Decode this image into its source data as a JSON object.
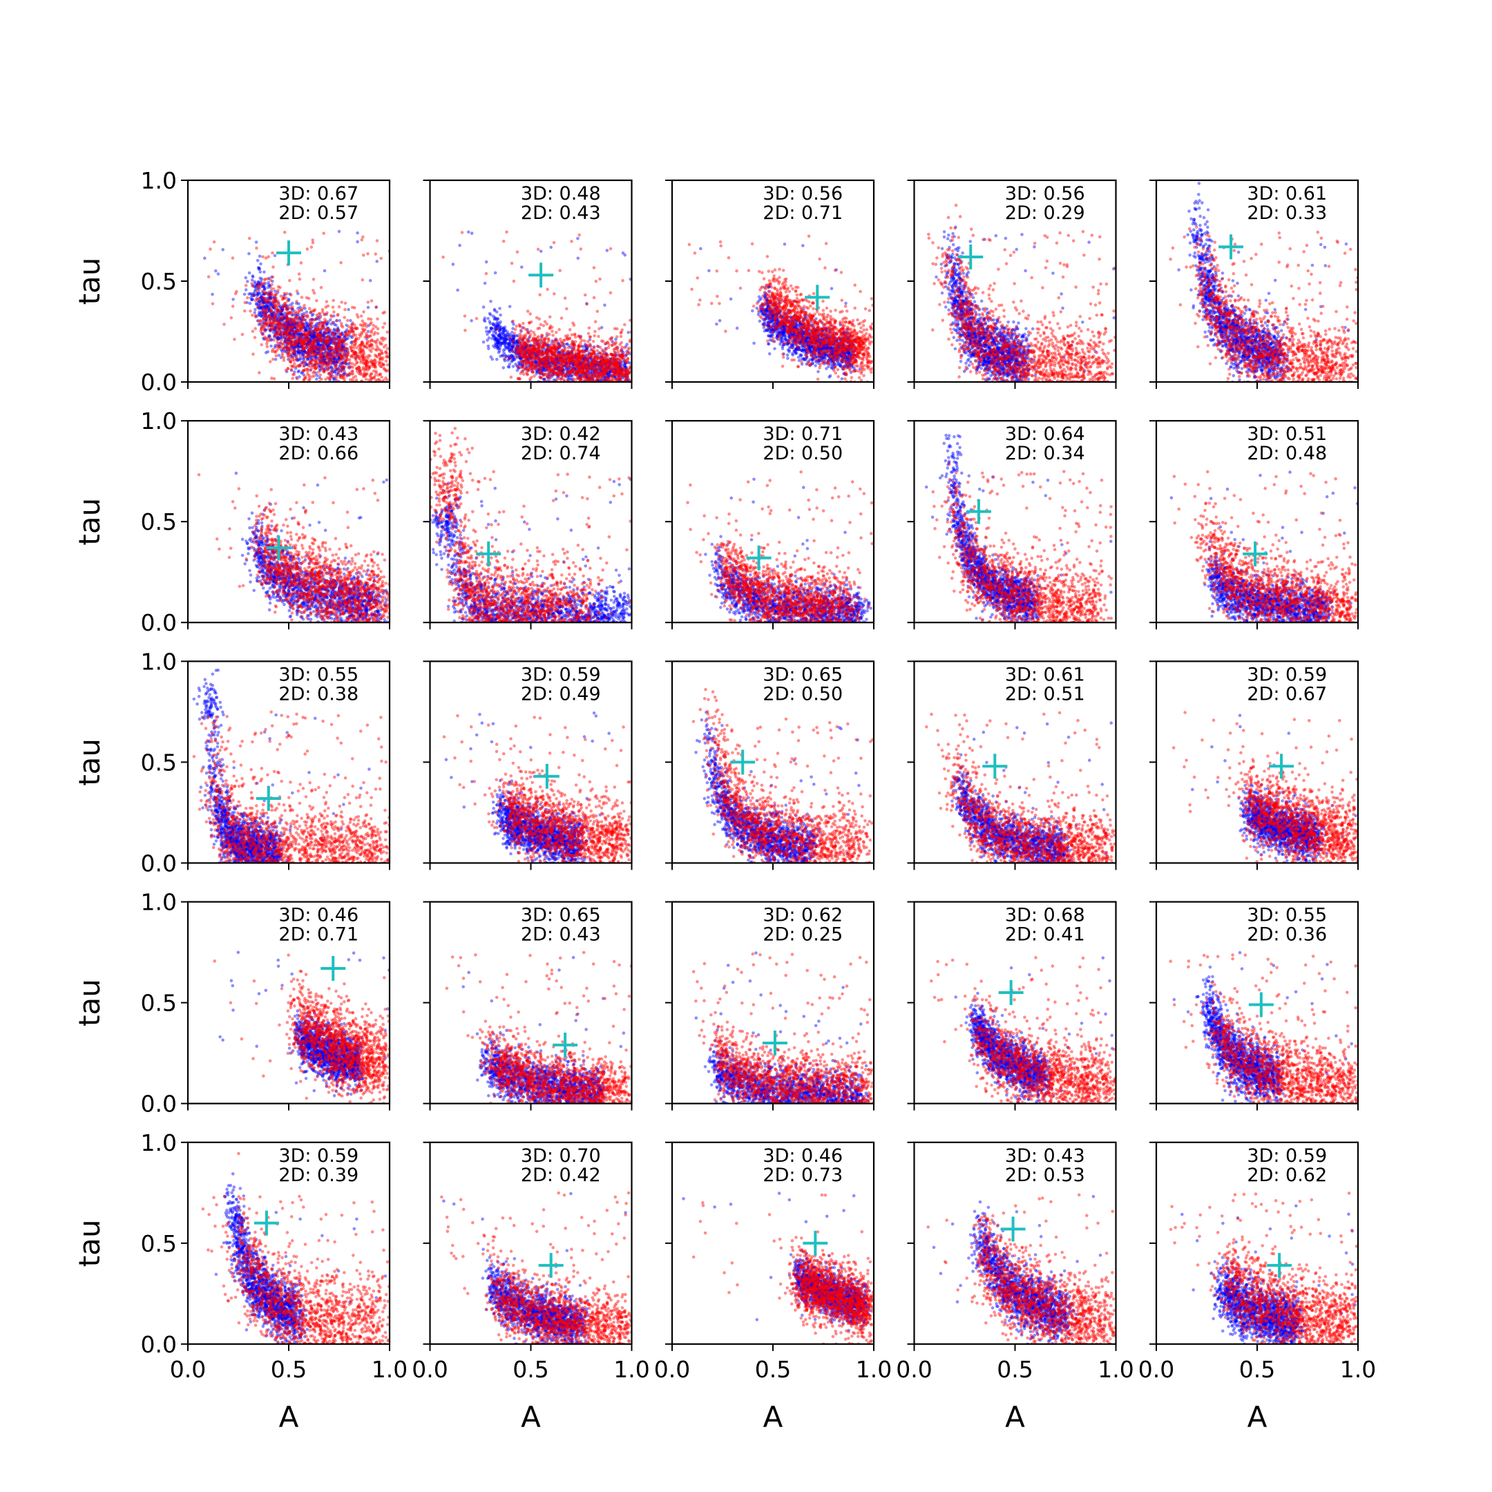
{
  "chart_data": {
    "type": "scatter",
    "layout": {
      "rows": 5,
      "cols": 5
    },
    "xlabel": "A",
    "ylabel": "tau",
    "xlim": [
      0.0,
      1.0
    ],
    "ylim": [
      0.0,
      1.0
    ],
    "xticks": [
      0.0,
      0.5,
      1.0
    ],
    "yticks": [
      0.0,
      0.5,
      1.0
    ],
    "xtick_labels": [
      "0.0",
      "0.5",
      "1.0"
    ],
    "ytick_labels": [
      "0.0",
      "0.5",
      "1.0"
    ],
    "colors": {
      "series_3d": "#0000ff",
      "series_2d": "#ff0000",
      "marker": "#1fbfbf"
    },
    "panels": [
      {
        "label3d": "3D: 0.67",
        "label2d": "2D: 0.57",
        "marker": [
          0.5,
          0.64
        ],
        "curve3d": {
          "a": 0.38,
          "b": 0.42,
          "xmin": 0.33,
          "xmax": 0.78,
          "w": 0.07
        },
        "curve2d": {
          "a": 0.34,
          "b": 0.48,
          "xmin": 0.36,
          "xmax": 0.98,
          "w": 0.1
        },
        "s3d": 0.02,
        "s2d": 0.05
      },
      {
        "label3d": "3D: 0.48",
        "label2d": "2D: 0.43",
        "marker": [
          0.55,
          0.53
        ],
        "curve3d": {
          "a": 0.28,
          "b": 0.32,
          "xmin": 0.3,
          "xmax": 0.98,
          "w": 0.05
        },
        "curve2d": {
          "a": 0.28,
          "b": 0.35,
          "xmin": 0.44,
          "xmax": 0.98,
          "w": 0.07
        },
        "s3d": 0.03,
        "s2d": 0.05
      },
      {
        "label3d": "3D: 0.56",
        "label2d": "2D: 0.71",
        "marker": [
          0.72,
          0.42
        ],
        "curve3d": {
          "a": 0.4,
          "b": 0.48,
          "xmin": 0.45,
          "xmax": 0.9,
          "w": 0.05
        },
        "curve2d": {
          "a": 0.45,
          "b": 0.52,
          "xmin": 0.47,
          "xmax": 0.98,
          "w": 0.07
        },
        "s3d": 0.02,
        "s2d": 0.04
      },
      {
        "label3d": "3D: 0.56",
        "label2d": "2D: 0.29",
        "marker": [
          0.28,
          0.62
        ],
        "curve3d": {
          "a": 0.3,
          "b": 0.25,
          "xmin": 0.18,
          "xmax": 0.55,
          "w": 0.07
        },
        "curve2d": {
          "a": 0.3,
          "b": 0.25,
          "xmin": 0.18,
          "xmax": 0.95,
          "w": 0.1
        },
        "s3d": 0.02,
        "s2d": 0.1
      },
      {
        "label3d": "3D: 0.61",
        "label2d": "2D: 0.33",
        "marker": [
          0.37,
          0.67
        ],
        "curve3d": {
          "a": 0.33,
          "b": 0.32,
          "xmin": 0.2,
          "xmax": 0.62,
          "w": 0.07
        },
        "curve2d": {
          "a": 0.32,
          "b": 0.33,
          "xmin": 0.22,
          "xmax": 0.97,
          "w": 0.1
        },
        "s3d": 0.02,
        "s2d": 0.08
      },
      {
        "label3d": "3D: 0.43",
        "label2d": "2D: 0.66",
        "marker": [
          0.45,
          0.37
        ],
        "curve3d": {
          "a": 0.38,
          "b": 0.33,
          "xmin": 0.32,
          "xmax": 0.95,
          "w": 0.07
        },
        "curve2d": {
          "a": 0.4,
          "b": 0.4,
          "xmin": 0.36,
          "xmax": 0.98,
          "w": 0.1
        },
        "s3d": 0.02,
        "s2d": 0.04
      },
      {
        "label3d": "3D: 0.42",
        "label2d": "2D: 0.74",
        "marker": [
          0.29,
          0.34
        ],
        "curve3d": {
          "a": 0.25,
          "b": 0.07,
          "xmin": 0.05,
          "xmax": 0.98,
          "w": 0.08
        },
        "curve2d": {
          "a": 0.25,
          "b": 0.1,
          "xmin": 0.05,
          "xmax": 0.8,
          "w": 0.12
        },
        "s3d": 0.02,
        "s2d": 0.06
      },
      {
        "label3d": "3D: 0.71",
        "label2d": "2D: 0.50",
        "marker": [
          0.43,
          0.32
        ],
        "curve3d": {
          "a": 0.25,
          "b": 0.25,
          "xmin": 0.22,
          "xmax": 0.95,
          "w": 0.06
        },
        "curve2d": {
          "a": 0.28,
          "b": 0.3,
          "xmin": 0.25,
          "xmax": 0.9,
          "w": 0.09
        },
        "s3d": 0.02,
        "s2d": 0.07
      },
      {
        "label3d": "3D: 0.64",
        "label2d": "2D: 0.34",
        "marker": [
          0.32,
          0.55
        ],
        "curve3d": {
          "a": 0.32,
          "b": 0.27,
          "xmin": 0.18,
          "xmax": 0.6,
          "w": 0.06
        },
        "curve2d": {
          "a": 0.32,
          "b": 0.27,
          "xmin": 0.2,
          "xmax": 0.92,
          "w": 0.1
        },
        "s3d": 0.02,
        "s2d": 0.08
      },
      {
        "label3d": "3D: 0.51",
        "label2d": "2D: 0.48",
        "marker": [
          0.49,
          0.34
        ],
        "curve3d": {
          "a": 0.25,
          "b": 0.3,
          "xmin": 0.27,
          "xmax": 0.85,
          "w": 0.06
        },
        "curve2d": {
          "a": 0.3,
          "b": 0.35,
          "xmin": 0.25,
          "xmax": 0.98,
          "w": 0.1
        },
        "s3d": 0.02,
        "s2d": 0.06
      },
      {
        "label3d": "3D: 0.55",
        "label2d": "2D: 0.38",
        "marker": [
          0.4,
          0.32
        ],
        "curve3d": {
          "a": 0.24,
          "b": 0.12,
          "xmin": 0.1,
          "xmax": 0.45,
          "w": 0.07
        },
        "curve2d": {
          "a": 0.24,
          "b": 0.12,
          "xmin": 0.12,
          "xmax": 0.98,
          "w": 0.12
        },
        "s3d": 0.02,
        "s2d": 0.1
      },
      {
        "label3d": "3D: 0.59",
        "label2d": "2D: 0.49",
        "marker": [
          0.58,
          0.43
        ],
        "curve3d": {
          "a": 0.3,
          "b": 0.35,
          "xmin": 0.35,
          "xmax": 0.75,
          "w": 0.06
        },
        "curve2d": {
          "a": 0.35,
          "b": 0.4,
          "xmin": 0.38,
          "xmax": 0.98,
          "w": 0.1
        },
        "s3d": 0.02,
        "s2d": 0.07
      },
      {
        "label3d": "3D: 0.65",
        "label2d": "2D: 0.50",
        "marker": [
          0.35,
          0.5
        ],
        "curve3d": {
          "a": 0.3,
          "b": 0.25,
          "xmin": 0.18,
          "xmax": 0.7,
          "w": 0.06
        },
        "curve2d": {
          "a": 0.32,
          "b": 0.3,
          "xmin": 0.2,
          "xmax": 0.95,
          "w": 0.1
        },
        "s3d": 0.02,
        "s2d": 0.08
      },
      {
        "label3d": "3D: 0.61",
        "label2d": "2D: 0.51",
        "marker": [
          0.4,
          0.48
        ],
        "curve3d": {
          "a": 0.3,
          "b": 0.25,
          "xmin": 0.22,
          "xmax": 0.75,
          "w": 0.06
        },
        "curve2d": {
          "a": 0.3,
          "b": 0.25,
          "xmin": 0.2,
          "xmax": 0.98,
          "w": 0.1
        },
        "s3d": 0.02,
        "s2d": 0.07
      },
      {
        "label3d": "3D: 0.59",
        "label2d": "2D: 0.67",
        "marker": [
          0.62,
          0.48
        ],
        "curve3d": {
          "a": 0.35,
          "b": 0.42,
          "xmin": 0.45,
          "xmax": 0.8,
          "w": 0.06
        },
        "curve2d": {
          "a": 0.4,
          "b": 0.45,
          "xmin": 0.45,
          "xmax": 0.98,
          "w": 0.1
        },
        "s3d": 0.02,
        "s2d": 0.05
      },
      {
        "label3d": "3D: 0.46",
        "label2d": "2D: 0.71",
        "marker": [
          0.72,
          0.67
        ],
        "curve3d": {
          "a": 0.4,
          "b": 0.6,
          "xmin": 0.55,
          "xmax": 0.85,
          "w": 0.06
        },
        "curve2d": {
          "a": 0.45,
          "b": 0.62,
          "xmin": 0.55,
          "xmax": 0.98,
          "w": 0.1
        },
        "s3d": 0.02,
        "s2d": 0.02
      },
      {
        "label3d": "3D: 0.65",
        "label2d": "2D: 0.43",
        "marker": [
          0.67,
          0.29
        ],
        "curve3d": {
          "a": 0.25,
          "b": 0.28,
          "xmin": 0.28,
          "xmax": 0.85,
          "w": 0.06
        },
        "curve2d": {
          "a": 0.28,
          "b": 0.3,
          "xmin": 0.3,
          "xmax": 0.98,
          "w": 0.08
        },
        "s3d": 0.02,
        "s2d": 0.06
      },
      {
        "label3d": "3D: 0.62",
        "label2d": "2D: 0.25",
        "marker": [
          0.51,
          0.3
        ],
        "curve3d": {
          "a": 0.22,
          "b": 0.2,
          "xmin": 0.2,
          "xmax": 0.95,
          "w": 0.06
        },
        "curve2d": {
          "a": 0.25,
          "b": 0.25,
          "xmin": 0.22,
          "xmax": 0.98,
          "w": 0.09
        },
        "s3d": 0.02,
        "s2d": 0.08
      },
      {
        "label3d": "3D: 0.68",
        "label2d": "2D: 0.41",
        "marker": [
          0.48,
          0.55
        ],
        "curve3d": {
          "a": 0.35,
          "b": 0.35,
          "xmin": 0.3,
          "xmax": 0.65,
          "w": 0.06
        },
        "curve2d": {
          "a": 0.35,
          "b": 0.35,
          "xmin": 0.32,
          "xmax": 0.98,
          "w": 0.1
        },
        "s3d": 0.02,
        "s2d": 0.07
      },
      {
        "label3d": "3D: 0.55",
        "label2d": "2D: 0.36",
        "marker": [
          0.52,
          0.49
        ],
        "curve3d": {
          "a": 0.35,
          "b": 0.3,
          "xmin": 0.25,
          "xmax": 0.6,
          "w": 0.07
        },
        "curve2d": {
          "a": 0.35,
          "b": 0.33,
          "xmin": 0.3,
          "xmax": 0.98,
          "w": 0.1
        },
        "s3d": 0.02,
        "s2d": 0.07
      },
      {
        "label3d": "3D: 0.59",
        "label2d": "2D: 0.39",
        "marker": [
          0.39,
          0.6
        ],
        "curve3d": {
          "a": 0.35,
          "b": 0.3,
          "xmin": 0.22,
          "xmax": 0.55,
          "w": 0.07
        },
        "curve2d": {
          "a": 0.35,
          "b": 0.32,
          "xmin": 0.25,
          "xmax": 0.98,
          "w": 0.12
        },
        "s3d": 0.02,
        "s2d": 0.08
      },
      {
        "label3d": "3D: 0.70",
        "label2d": "2D: 0.42",
        "marker": [
          0.6,
          0.39
        ],
        "curve3d": {
          "a": 0.3,
          "b": 0.35,
          "xmin": 0.3,
          "xmax": 0.75,
          "w": 0.06
        },
        "curve2d": {
          "a": 0.3,
          "b": 0.35,
          "xmin": 0.32,
          "xmax": 0.98,
          "w": 0.09
        },
        "s3d": 0.02,
        "s2d": 0.07
      },
      {
        "label3d": "3D: 0.46",
        "label2d": "2D: 0.73",
        "marker": [
          0.71,
          0.5
        ],
        "curve3d": {
          "a": 0.45,
          "b": 0.6,
          "xmin": 0.62,
          "xmax": 0.95,
          "w": 0.05
        },
        "curve2d": {
          "a": 0.45,
          "b": 0.6,
          "xmin": 0.62,
          "xmax": 0.99,
          "w": 0.08
        },
        "s3d": 0.02,
        "s2d": 0.02
      },
      {
        "label3d": "3D: 0.43",
        "label2d": "2D: 0.53",
        "marker": [
          0.49,
          0.57
        ],
        "curve3d": {
          "a": 0.4,
          "b": 0.4,
          "xmin": 0.32,
          "xmax": 0.75,
          "w": 0.07
        },
        "curve2d": {
          "a": 0.4,
          "b": 0.4,
          "xmin": 0.33,
          "xmax": 0.98,
          "w": 0.1
        },
        "s3d": 0.02,
        "s2d": 0.06
      },
      {
        "label3d": "3D: 0.59",
        "label2d": "2D: 0.62",
        "marker": [
          0.61,
          0.39
        ],
        "curve3d": {
          "a": 0.3,
          "b": 0.35,
          "xmin": 0.32,
          "xmax": 0.7,
          "w": 0.07
        },
        "curve2d": {
          "a": 0.35,
          "b": 0.4,
          "xmin": 0.35,
          "xmax": 0.98,
          "w": 0.1
        },
        "s3d": 0.02,
        "s2d": 0.06
      }
    ]
  }
}
